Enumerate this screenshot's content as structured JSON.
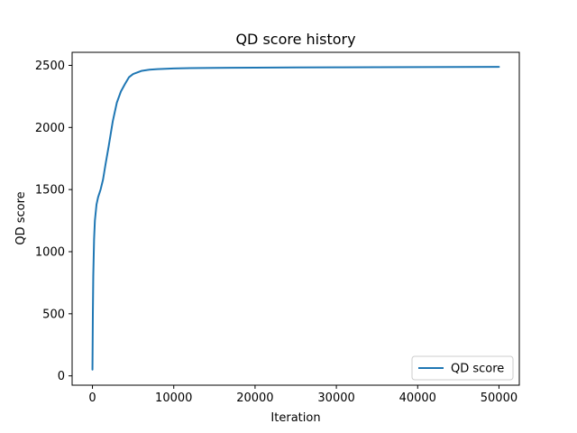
{
  "chart_data": {
    "type": "line",
    "title": "QD score history",
    "xlabel": "Iteration",
    "ylabel": "QD score",
    "xlim": [
      -2500,
      52500
    ],
    "ylim": [
      -75,
      2605
    ],
    "xticks": [
      0,
      10000,
      20000,
      30000,
      40000,
      50000
    ],
    "yticks": [
      0,
      500,
      1000,
      1500,
      2000,
      2500
    ],
    "grid": false,
    "legend": {
      "placement": "lower-right",
      "entries": [
        "QD score"
      ]
    },
    "series": [
      {
        "name": "QD score",
        "color": "#1f77b4",
        "x": [
          0,
          50,
          100,
          200,
          300,
          500,
          700,
          1000,
          1300,
          1600,
          2000,
          2500,
          3000,
          3500,
          4000,
          4500,
          5000,
          6000,
          7000,
          8000,
          10000,
          12000,
          15000,
          20000,
          25000,
          30000,
          35000,
          40000,
          45000,
          50000
        ],
        "y": [
          50,
          500,
          800,
          1100,
          1250,
          1380,
          1440,
          1500,
          1580,
          1700,
          1850,
          2050,
          2200,
          2290,
          2350,
          2405,
          2430,
          2455,
          2465,
          2470,
          2475,
          2478,
          2480,
          2482,
          2483,
          2484,
          2485,
          2486,
          2487,
          2488
        ]
      }
    ]
  }
}
